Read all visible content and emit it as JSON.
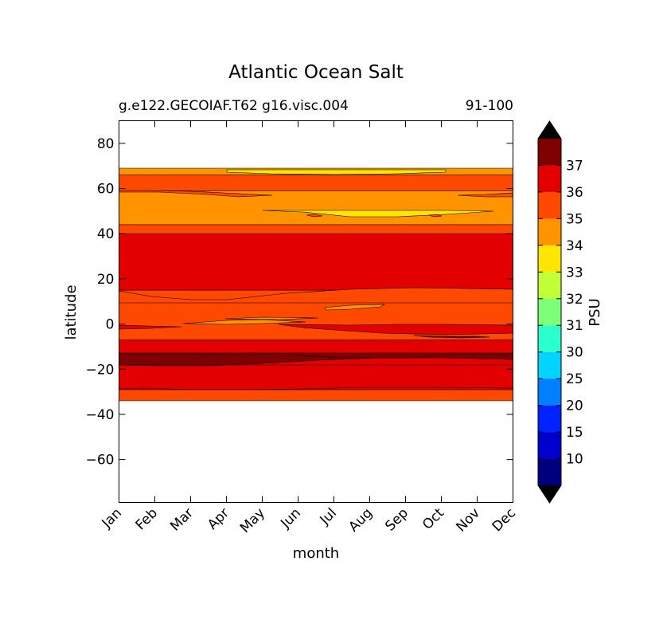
{
  "chart_data": {
    "type": "heatmap",
    "title": "Atlantic Ocean Salt",
    "subtitle_left": "g.e122.GECOIAF.T62 g16.visc.004",
    "subtitle_right": "91-100",
    "xlabel": "month",
    "ylabel": "latitude",
    "x_ticks": [
      "Jan",
      "Feb",
      "Mar",
      "Apr",
      "May",
      "Jun",
      "Jul",
      "Aug",
      "Sep",
      "Oct",
      "Nov",
      "Dec"
    ],
    "ylim": [
      -79,
      90
    ],
    "y_ticks": [
      80,
      60,
      40,
      20,
      0,
      -20,
      -40,
      -60
    ],
    "data_lat_range": [
      -34,
      69
    ],
    "colorbar": {
      "label": "PSU",
      "levels": [
        10,
        15,
        20,
        25,
        30,
        31,
        32,
        33,
        34,
        35,
        36,
        37
      ],
      "colors": [
        "#00007f",
        "#0000cc",
        "#0022ff",
        "#0080ff",
        "#00d4ff",
        "#2bffcd",
        "#7dff7a",
        "#c1ff36",
        "#ffe600",
        "#ff9400",
        "#ff4800",
        "#e30000",
        "#7f0000"
      ],
      "extend": "both",
      "under_color": "#000000",
      "over_color": "#000000"
    },
    "bands": [
      {
        "range": [
          -34,
          -29
        ],
        "value_class": "35-36",
        "color": "#ff4800"
      },
      {
        "range": [
          -29,
          -18
        ],
        "value_class": "36-37",
        "color": "#e30000"
      },
      {
        "range": [
          -18,
          -13
        ],
        "value_class": ">37",
        "color": "#7f0000"
      },
      {
        "range": [
          -13,
          -7
        ],
        "value_class": "36-37",
        "color": "#e30000"
      },
      {
        "range": [
          -7,
          15
        ],
        "value_class": "35-36",
        "color": "#ff4800"
      },
      {
        "range": [
          15,
          40
        ],
        "value_class": "36-37",
        "color": "#e30000"
      },
      {
        "range": [
          40,
          44
        ],
        "value_class": "35-36",
        "color": "#ff4800"
      },
      {
        "range": [
          44,
          59
        ],
        "value_class": "34-35",
        "color": "#ff9400"
      },
      {
        "range": [
          59,
          66
        ],
        "value_class": "35-36",
        "color": "#ff4800"
      },
      {
        "range": [
          66,
          69
        ],
        "value_class": "34-35",
        "color": "#ff9400"
      }
    ]
  }
}
